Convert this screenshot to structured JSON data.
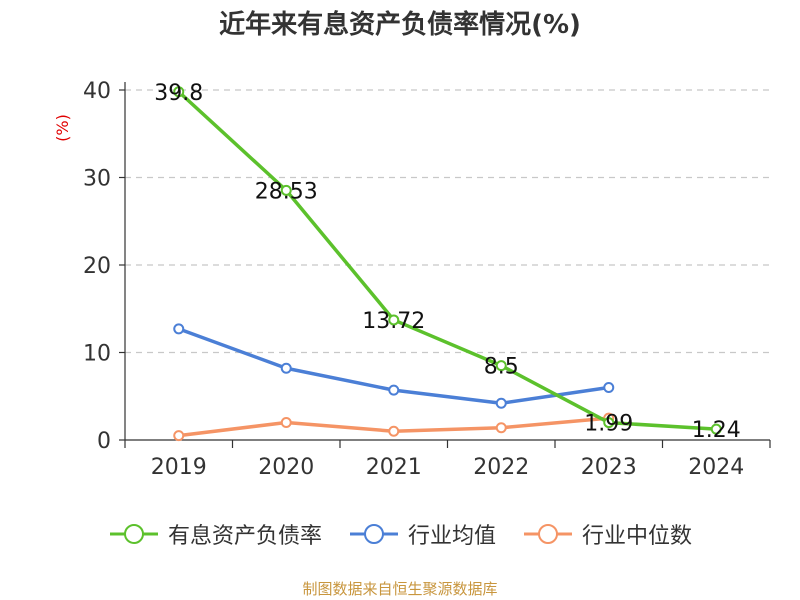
{
  "chart_data": {
    "type": "line",
    "title": "近年来有息资产负债率情况(%)",
    "ylabel": "(%)",
    "categories": [
      "2019",
      "2020",
      "2021",
      "2022",
      "2023",
      "2024"
    ],
    "ylim": [
      0,
      40
    ],
    "yticks": [
      "0",
      "10",
      "20",
      "30",
      "40"
    ],
    "grid": true,
    "legend_position": "bottom",
    "series": [
      {
        "name": "有息资产负债率",
        "color": "#5cc12c",
        "values": [
          39.8,
          28.53,
          13.72,
          8.5,
          1.99,
          1.24
        ],
        "labels": [
          "39.8",
          "28.53",
          "13.72",
          "8.5",
          "1.99",
          "1.24"
        ]
      },
      {
        "name": "行业均值",
        "color": "#4b7fd6",
        "values": [
          12.7,
          8.2,
          5.7,
          4.2,
          6.0,
          null
        ]
      },
      {
        "name": "行业中位数",
        "color": "#f59465",
        "values": [
          0.5,
          2.0,
          1.0,
          1.4,
          2.5,
          null
        ]
      }
    ],
    "source": "制图数据来自恒生聚源数据库"
  }
}
